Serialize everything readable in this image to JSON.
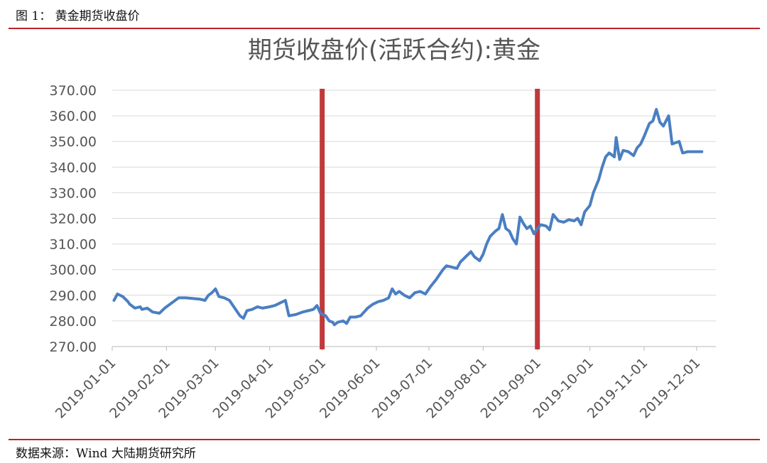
{
  "figure": {
    "caption": "图 1： 黄金期货收盘价",
    "source": "数据来源：Wind 大陆期货研究所"
  },
  "chart_data": {
    "type": "line",
    "title": "期货收盘价(活跃合约):黄金",
    "xlabel": "",
    "ylabel": "",
    "x_range": [
      "2019-01-01",
      "2019-12-04"
    ],
    "ylim": [
      270,
      370
    ],
    "y_ticks": [
      "270.00",
      "280.00",
      "290.00",
      "300.00",
      "310.00",
      "320.00",
      "330.00",
      "340.00",
      "350.00",
      "360.00",
      "370.00"
    ],
    "x_ticks": [
      "2019-01-01",
      "2019-02-01",
      "2019-03-01",
      "2019-04-01",
      "2019-05-01",
      "2019-06-01",
      "2019-07-01",
      "2019-08-01",
      "2019-09-01",
      "2019-10-01",
      "2019-11-01",
      "2019-12-01"
    ],
    "grid": true,
    "legend": "none",
    "series_color": "#4a7fc1",
    "marker_color": "#c0393b",
    "vertical_markers": [
      "2019-05-01",
      "2019-09-01"
    ],
    "series": [
      {
        "points": [
          [
            "2019-01-02",
            288.0
          ],
          [
            "2019-01-04",
            290.5
          ],
          [
            "2019-01-07",
            289.5
          ],
          [
            "2019-01-10",
            287.5
          ],
          [
            "2019-01-11",
            286.5
          ],
          [
            "2019-01-14",
            285.0
          ],
          [
            "2019-01-17",
            285.5
          ],
          [
            "2019-01-18",
            284.5
          ],
          [
            "2019-01-21",
            285.0
          ],
          [
            "2019-01-24",
            283.5
          ],
          [
            "2019-01-28",
            283.0
          ],
          [
            "2019-01-31",
            285.0
          ],
          [
            "2019-02-05",
            287.5
          ],
          [
            "2019-02-08",
            289.0
          ],
          [
            "2019-02-12",
            289.0
          ],
          [
            "2019-02-20",
            288.5
          ],
          [
            "2019-02-23",
            288.0
          ],
          [
            "2019-02-25",
            290.0
          ],
          [
            "2019-02-27",
            291.0
          ],
          [
            "2019-03-01",
            292.5
          ],
          [
            "2019-03-03",
            289.5
          ],
          [
            "2019-03-06",
            289.0
          ],
          [
            "2019-03-09",
            288.0
          ],
          [
            "2019-03-12",
            285.0
          ],
          [
            "2019-03-15",
            282.0
          ],
          [
            "2019-03-17",
            281.0
          ],
          [
            "2019-03-19",
            284.0
          ],
          [
            "2019-03-22",
            284.5
          ],
          [
            "2019-03-25",
            285.5
          ],
          [
            "2019-03-28",
            285.0
          ],
          [
            "2019-04-01",
            285.5
          ],
          [
            "2019-04-04",
            286.0
          ],
          [
            "2019-04-07",
            287.0
          ],
          [
            "2019-04-10",
            288.0
          ],
          [
            "2019-04-12",
            282.0
          ],
          [
            "2019-04-16",
            282.5
          ],
          [
            "2019-04-20",
            283.5
          ],
          [
            "2019-04-23",
            284.0
          ],
          [
            "2019-04-26",
            284.5
          ],
          [
            "2019-04-28",
            286.0
          ],
          [
            "2019-04-30",
            283.0
          ],
          [
            "2019-05-03",
            282.0
          ],
          [
            "2019-05-05",
            280.0
          ],
          [
            "2019-05-07",
            279.5
          ],
          [
            "2019-05-08",
            278.5
          ],
          [
            "2019-05-10",
            279.5
          ],
          [
            "2019-05-13",
            280.0
          ],
          [
            "2019-05-15",
            279.0
          ],
          [
            "2019-05-17",
            281.5
          ],
          [
            "2019-05-20",
            281.5
          ],
          [
            "2019-05-23",
            282.0
          ],
          [
            "2019-05-27",
            285.0
          ],
          [
            "2019-05-30",
            286.5
          ],
          [
            "2019-06-02",
            287.5
          ],
          [
            "2019-06-05",
            288.0
          ],
          [
            "2019-06-08",
            289.0
          ],
          [
            "2019-06-10",
            292.5
          ],
          [
            "2019-06-12",
            290.5
          ],
          [
            "2019-06-14",
            291.5
          ],
          [
            "2019-06-17",
            290.0
          ],
          [
            "2019-06-20",
            289.0
          ],
          [
            "2019-06-23",
            291.0
          ],
          [
            "2019-06-26",
            291.5
          ],
          [
            "2019-06-29",
            290.5
          ],
          [
            "2019-07-02",
            293.5
          ],
          [
            "2019-07-05",
            296.0
          ],
          [
            "2019-07-09",
            300.0
          ],
          [
            "2019-07-11",
            301.5
          ],
          [
            "2019-07-14",
            301.0
          ],
          [
            "2019-07-17",
            300.5
          ],
          [
            "2019-07-19",
            303.0
          ],
          [
            "2019-07-22",
            305.0
          ],
          [
            "2019-07-25",
            307.0
          ],
          [
            "2019-07-27",
            305.0
          ],
          [
            "2019-07-30",
            303.5
          ],
          [
            "2019-08-01",
            306.0
          ],
          [
            "2019-08-03",
            310.0
          ],
          [
            "2019-08-05",
            313.0
          ],
          [
            "2019-08-08",
            315.0
          ],
          [
            "2019-08-10",
            316.0
          ],
          [
            "2019-08-12",
            321.5
          ],
          [
            "2019-08-14",
            316.0
          ],
          [
            "2019-08-16",
            315.0
          ],
          [
            "2019-08-18",
            312.0
          ],
          [
            "2019-08-20",
            310.0
          ],
          [
            "2019-08-22",
            320.5
          ],
          [
            "2019-08-24",
            318.0
          ],
          [
            "2019-08-26",
            316.0
          ],
          [
            "2019-08-28",
            317.0
          ],
          [
            "2019-08-30",
            314.0
          ],
          [
            "2019-09-01",
            316.0
          ],
          [
            "2019-09-03",
            317.5
          ],
          [
            "2019-09-06",
            317.0
          ],
          [
            "2019-09-08",
            315.5
          ],
          [
            "2019-09-10",
            321.5
          ],
          [
            "2019-09-13",
            319.0
          ],
          [
            "2019-09-16",
            318.5
          ],
          [
            "2019-09-19",
            319.5
          ],
          [
            "2019-09-22",
            319.0
          ],
          [
            "2019-09-24",
            320.0
          ],
          [
            "2019-09-26",
            317.5
          ],
          [
            "2019-09-28",
            322.5
          ],
          [
            "2019-10-01",
            325.0
          ],
          [
            "2019-10-03",
            330.0
          ],
          [
            "2019-10-06",
            335.0
          ],
          [
            "2019-10-08",
            340.0
          ],
          [
            "2019-10-10",
            344.0
          ],
          [
            "2019-10-12",
            345.5
          ],
          [
            "2019-10-15",
            344.0
          ],
          [
            "2019-10-16",
            351.5
          ],
          [
            "2019-10-18",
            343.0
          ],
          [
            "2019-10-20",
            346.5
          ],
          [
            "2019-10-23",
            346.0
          ],
          [
            "2019-10-26",
            344.5
          ],
          [
            "2019-10-28",
            347.5
          ],
          [
            "2019-10-30",
            349.0
          ],
          [
            "2019-11-01",
            352.0
          ],
          [
            "2019-11-04",
            357.0
          ],
          [
            "2019-11-06",
            358.0
          ],
          [
            "2019-11-08",
            362.5
          ],
          [
            "2019-11-10",
            357.5
          ],
          [
            "2019-11-12",
            356.0
          ],
          [
            "2019-11-15",
            360.0
          ],
          [
            "2019-11-17",
            349.0
          ],
          [
            "2019-11-19",
            349.5
          ],
          [
            "2019-11-21",
            350.0
          ],
          [
            "2019-11-23",
            345.5
          ],
          [
            "2019-11-26",
            346.0
          ],
          [
            "2019-11-29",
            346.0
          ],
          [
            "2019-12-02",
            346.0
          ],
          [
            "2019-12-04",
            346.0
          ]
        ]
      }
    ]
  }
}
